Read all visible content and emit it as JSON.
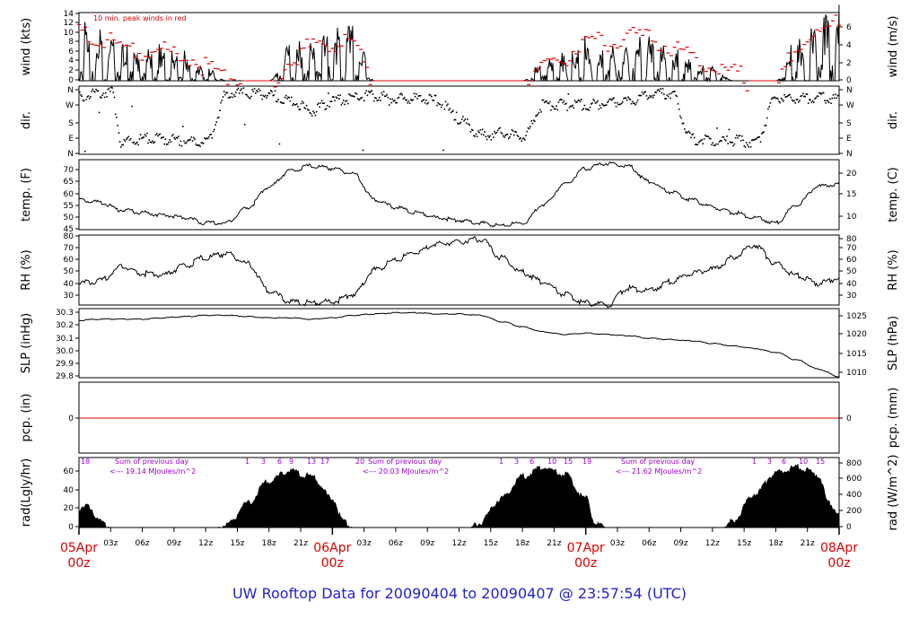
{
  "colors": {
    "black": "#000000",
    "red": "#dd0000",
    "annot": "#9900cc",
    "footer": "#2222cc"
  },
  "footer": "UW Rooftop Data for 20090404  to  20090407 @ 23:57:54  (UTC)",
  "x_axis": {
    "hour_ticks": [
      "03z",
      "06z",
      "09z",
      "12z",
      "15z",
      "18z",
      "21z",
      "03z",
      "06z",
      "09z",
      "12z",
      "15z",
      "18z",
      "21z",
      "03z",
      "06z",
      "09z",
      "12z",
      "15z",
      "18z",
      "21z"
    ],
    "day_labels": [
      {
        "date": "05Apr",
        "time": "00z"
      },
      {
        "date": "06Apr",
        "time": "00z"
      },
      {
        "date": "07Apr",
        "time": "00z"
      },
      {
        "date": "08Apr",
        "time": "00z"
      }
    ]
  },
  "chart_data": [
    {
      "type": "line",
      "panel": "wind",
      "ylabel_left": "wind (kts)",
      "ylabel_right": "wind (m/s)",
      "annotation": "10 min. peak winds in red",
      "ylim": [
        0,
        14
      ],
      "left_ticks": [
        "0",
        "2",
        "4",
        "6",
        "8",
        "10",
        "12",
        "14"
      ],
      "right_ticks": [
        "0",
        "2",
        "4",
        "6"
      ],
      "series": [
        {
          "name": "wind speed",
          "color": "#000000",
          "x": [
            0,
            2,
            4,
            6,
            8,
            10,
            12,
            14,
            16,
            18,
            20,
            22,
            24,
            26,
            28,
            30,
            32,
            34,
            36,
            38,
            40,
            42,
            44,
            46,
            48,
            50,
            52,
            54,
            56,
            58,
            60,
            62,
            64,
            66,
            68,
            70,
            72
          ],
          "values": [
            8,
            7,
            5,
            4,
            5,
            4,
            2,
            0,
            0,
            0,
            5,
            6,
            7,
            8,
            0,
            0,
            0,
            0,
            0,
            0,
            0,
            0,
            3,
            4,
            6,
            5,
            6,
            6,
            5,
            3,
            2,
            0,
            0,
            0,
            6,
            8,
            11
          ]
        },
        {
          "name": "10 min. peak winds",
          "color": "#dd0000",
          "x": [
            0,
            2,
            4,
            6,
            8,
            10,
            12,
            14,
            16,
            18,
            20,
            22,
            24,
            26,
            28,
            30,
            32,
            34,
            36,
            38,
            40,
            42,
            44,
            46,
            48,
            50,
            52,
            54,
            56,
            58,
            60,
            62,
            64,
            66,
            68,
            70,
            72
          ],
          "values": [
            11,
            10,
            8,
            7,
            7,
            6,
            4,
            2,
            0,
            0,
            5,
            8,
            9,
            9,
            0,
            0,
            0,
            0,
            0,
            0,
            0,
            0,
            4,
            6,
            9,
            9,
            10,
            10,
            8,
            6,
            4,
            3,
            0,
            0,
            8,
            11,
            13
          ]
        }
      ]
    },
    {
      "type": "scatter",
      "panel": "dir",
      "ylabel_left": "dir.",
      "ylabel_right": "dir.",
      "left_ticks": [
        "N",
        "E",
        "S",
        "W",
        "N"
      ],
      "right_ticks": [
        "N",
        "E",
        "S",
        "W",
        "N"
      ],
      "series": [
        {
          "name": "wind direction",
          "x": [
            0,
            2,
            3,
            4,
            5,
            6,
            8,
            10,
            12,
            14,
            16,
            18,
            20,
            22,
            24,
            26,
            28,
            30,
            32,
            34,
            36,
            38,
            40,
            42,
            44,
            46,
            48,
            50,
            52,
            54,
            56,
            58,
            60,
            62,
            64,
            66,
            68,
            70,
            72
          ],
          "values": [
            320,
            340,
            350,
            80,
            90,
            100,
            100,
            90,
            80,
            340,
            340,
            330,
            300,
            250,
            300,
            320,
            330,
            310,
            310,
            300,
            200,
            120,
            130,
            110,
            280,
            280,
            280,
            290,
            300,
            330,
            340,
            100,
            90,
            90,
            80,
            320,
            310,
            320,
            310
          ]
        }
      ]
    },
    {
      "type": "line",
      "panel": "temp",
      "ylabel_left": "temp. (F)",
      "ylabel_right": "temp. (C)",
      "ylim": [
        45,
        72
      ],
      "left_ticks": [
        "45",
        "50",
        "55",
        "60",
        "65",
        "70"
      ],
      "right_ticks": [
        "10",
        "15",
        "20"
      ],
      "series": [
        {
          "name": "temperature",
          "x": [
            0,
            2,
            4,
            6,
            8,
            10,
            12,
            14,
            16,
            18,
            20,
            22,
            24,
            26,
            28,
            30,
            32,
            34,
            36,
            38,
            40,
            42,
            44,
            46,
            48,
            50,
            52,
            54,
            56,
            58,
            60,
            62,
            64,
            66,
            68,
            70,
            72
          ],
          "values": [
            57,
            56,
            53,
            52,
            51,
            50,
            48,
            48,
            54,
            62,
            68,
            70,
            69,
            67,
            57,
            54,
            52,
            50,
            49,
            48,
            47,
            48,
            55,
            63,
            69,
            71,
            70,
            64,
            60,
            57,
            54,
            52,
            50,
            48,
            55,
            62,
            63
          ]
        }
      ]
    },
    {
      "type": "line",
      "panel": "rh",
      "ylabel_left": "RH (%)",
      "ylabel_right": "RH (%)",
      "ylim": [
        25,
        82
      ],
      "left_ticks": [
        "30",
        "40",
        "50",
        "60",
        "70",
        "80"
      ],
      "right_ticks": [
        "30",
        "40",
        "50",
        "60",
        "70",
        "80"
      ],
      "series": [
        {
          "name": "relative humidity",
          "x": [
            0,
            2,
            4,
            6,
            8,
            10,
            12,
            14,
            16,
            18,
            20,
            22,
            24,
            26,
            28,
            30,
            32,
            34,
            36,
            38,
            40,
            42,
            44,
            46,
            48,
            50,
            52,
            54,
            56,
            58,
            60,
            62,
            64,
            66,
            68,
            70,
            72
          ],
          "values": [
            44,
            46,
            57,
            52,
            51,
            58,
            65,
            68,
            60,
            38,
            29,
            28,
            29,
            35,
            55,
            63,
            70,
            76,
            78,
            80,
            65,
            53,
            45,
            35,
            28,
            26,
            40,
            38,
            45,
            52,
            55,
            65,
            75,
            60,
            50,
            44,
            48
          ]
        }
      ]
    },
    {
      "type": "line",
      "panel": "slp",
      "ylabel_left": "SLP (inHg)",
      "ylabel_right": "SLP (hPa)",
      "ylim": [
        29.78,
        30.32
      ],
      "left_ticks": [
        "29.8",
        "29.9",
        "30.0",
        "30.1",
        "30.2",
        "30.3"
      ],
      "right_ticks": [
        "1010",
        "1015",
        "1020",
        "1025"
      ],
      "series": [
        {
          "name": "sea level pressure",
          "x": [
            0,
            2,
            4,
            6,
            8,
            10,
            12,
            14,
            16,
            18,
            20,
            22,
            24,
            26,
            28,
            30,
            32,
            34,
            36,
            38,
            40,
            42,
            44,
            46,
            48,
            50,
            52,
            54,
            56,
            58,
            60,
            62,
            64,
            66,
            68,
            70,
            72
          ],
          "values": [
            30.23,
            30.24,
            30.24,
            30.24,
            30.25,
            30.26,
            30.27,
            30.27,
            30.26,
            30.25,
            30.25,
            30.24,
            30.25,
            30.27,
            30.28,
            30.29,
            30.29,
            30.28,
            30.28,
            30.27,
            30.22,
            30.18,
            30.14,
            30.12,
            30.13,
            30.12,
            30.11,
            30.09,
            30.08,
            30.07,
            30.05,
            30.03,
            30.01,
            29.98,
            29.92,
            29.85,
            29.79
          ]
        }
      ]
    },
    {
      "type": "line",
      "panel": "pcp",
      "ylabel_left": "pcp. (in)",
      "ylabel_right": "pcp. (mm)",
      "left_ticks": [
        "0"
      ],
      "right_ticks": [
        "0"
      ],
      "series": [
        {
          "name": "precipitation",
          "color": "#dd0000",
          "x": [
            0,
            72
          ],
          "values": [
            0,
            0
          ]
        }
      ]
    },
    {
      "type": "area",
      "panel": "rad",
      "ylabel_left": "rad(Lgly/hr)",
      "ylabel_right": "rad (W/m^2)",
      "ylim": [
        0,
        72
      ],
      "left_ticks": [
        "0",
        "20",
        "40",
        "60"
      ],
      "right_ticks": [
        "0",
        "200",
        "400",
        "600",
        "800"
      ],
      "annotations": [
        {
          "label": "Sum of previous day",
          "value": "<--- 19.14 MJoules/m^2"
        },
        {
          "label": "Sum of previous day",
          "value": "<--- 20.03 MJoules/m^2"
        },
        {
          "label": "Sum of previous day",
          "value": "<--- 21.62 MJoules/m^2"
        }
      ],
      "hour_marks": [
        {
          "day": 0,
          "labels": [
            "18"
          ]
        },
        {
          "day": 1,
          "labels": [
            "1",
            "3",
            "6",
            "9",
            "13",
            "17",
            "20"
          ]
        },
        {
          "day": 2,
          "labels": [
            "1",
            "3",
            "6",
            "10",
            "15",
            "19"
          ]
        },
        {
          "day": 3,
          "labels": [
            "1",
            "3",
            "6",
            "10",
            "15"
          ]
        }
      ],
      "series": [
        {
          "name": "solar radiation",
          "x": [
            0,
            1,
            2,
            3,
            12,
            13,
            14,
            16,
            18,
            20,
            22,
            24,
            25,
            26,
            27,
            36,
            37,
            38,
            40,
            42,
            44,
            46,
            48,
            49,
            50,
            51,
            60,
            61,
            62,
            64,
            66,
            68,
            70,
            71,
            72
          ],
          "values": [
            22,
            26,
            8,
            0,
            0,
            0,
            5,
            30,
            55,
            66,
            60,
            35,
            10,
            0,
            0,
            0,
            0,
            8,
            35,
            60,
            70,
            62,
            35,
            5,
            0,
            0,
            0,
            0,
            10,
            40,
            64,
            70,
            62,
            30,
            18
          ]
        }
      ]
    }
  ]
}
